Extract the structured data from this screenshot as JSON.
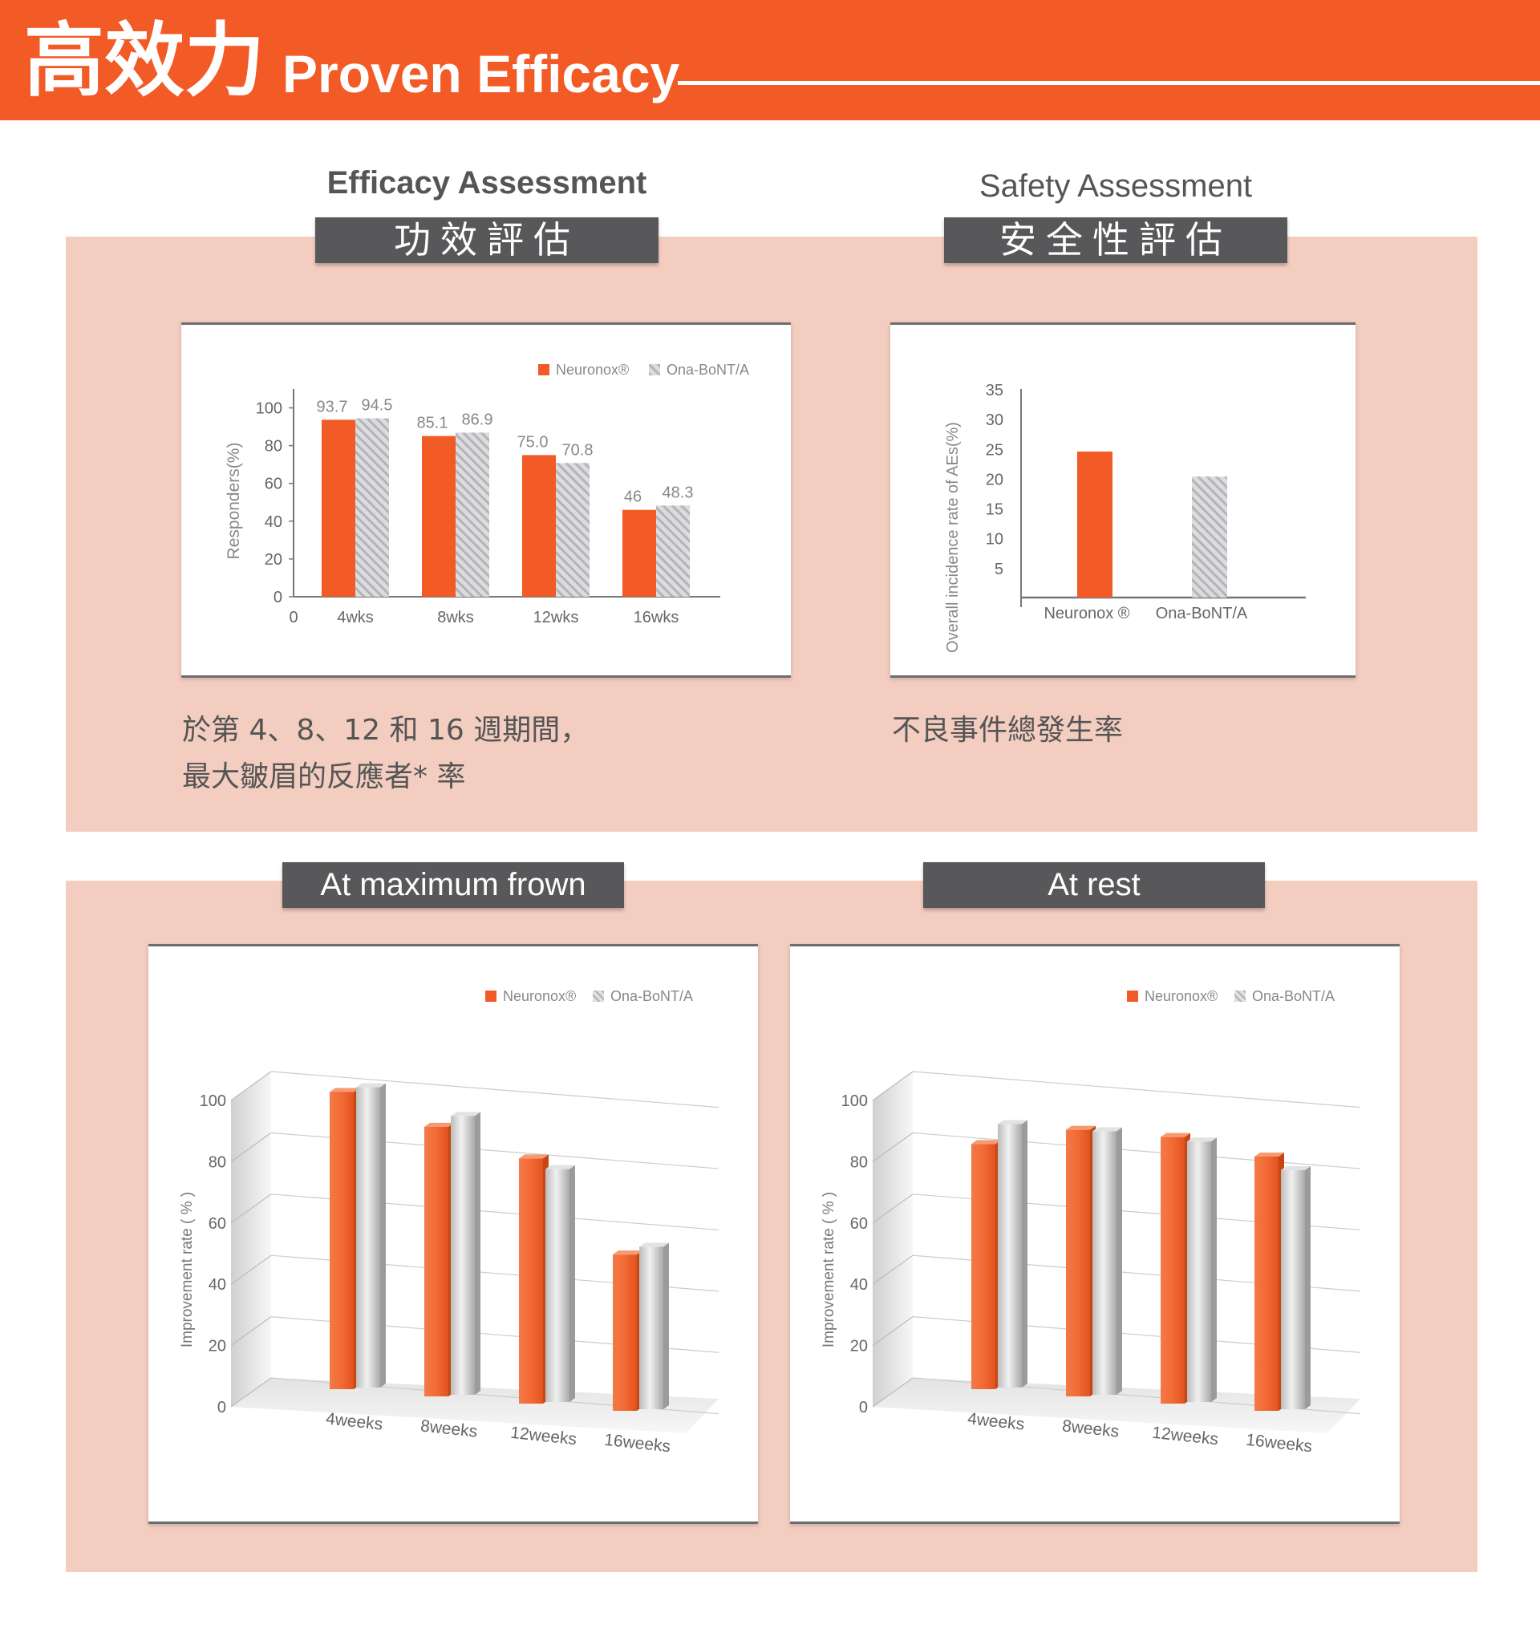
{
  "header": {
    "title_zh": "高效力",
    "title_en": "Proven Efficacy"
  },
  "top_left": {
    "label_en": "Efficacy Assessment",
    "label_zh": "功效評估",
    "caption_line1": "於第 4、8、12 和 16 週期間，",
    "caption_line2": "最大皺眉的反應者* 率"
  },
  "top_right": {
    "label_en": "Safety Assessment",
    "label_zh": "安全性評估",
    "caption_line1": "不良事件總發生率"
  },
  "bottom_left": {
    "label": "At maximum frown"
  },
  "bottom_right": {
    "label": "At rest"
  },
  "colors": {
    "neuronox": "#f25a26",
    "ona": "#c8c8cc",
    "header": "#f25a26",
    "band": "#f4cdc1",
    "title_bar": "#58585a"
  },
  "chart_data": [
    {
      "type": "bar",
      "categories": [
        "4wks",
        "8wks",
        "12wks",
        "16wks"
      ],
      "series": [
        {
          "name": "Neuronox®",
          "values": [
            93.7,
            85.1,
            75.0,
            46
          ]
        },
        {
          "name": "Ona-BoNT/A",
          "values": [
            94.5,
            86.9,
            70.8,
            48.3
          ]
        }
      ],
      "value_labels": [
        [
          "93.7",
          "85.1",
          "75.0",
          "46"
        ],
        [
          "94.5",
          "86.9",
          "70.8",
          "48.3"
        ]
      ],
      "x_origin_label": "0",
      "ylabel": "Responders(%)",
      "yticks": [
        0,
        20,
        40,
        60,
        80,
        100
      ],
      "ylim": [
        0,
        110
      ],
      "legend_position": "top-right"
    },
    {
      "type": "bar",
      "categories": [
        "Neuronox ®",
        "Ona-BoNT/A"
      ],
      "values": [
        24.5,
        20.3
      ],
      "ylabel": "Overall incidence rate of AEs(%)",
      "yticks": [
        5,
        10,
        15,
        20,
        25,
        30,
        35
      ],
      "ylim": [
        0,
        35
      ]
    },
    {
      "type": "bar",
      "categories": [
        "4weeks",
        "8weeks",
        "12weeks",
        "16weeks"
      ],
      "series": [
        {
          "name": "Neuronox®",
          "values": [
            97,
            88,
            80,
            51
          ]
        },
        {
          "name": "Ona-BoNT/A",
          "values": [
            98,
            91,
            76,
            53
          ]
        }
      ],
      "ylabel": "Improvement rate ( % )",
      "yticks": [
        0,
        20,
        40,
        60,
        80,
        100
      ],
      "ylim": [
        0,
        100
      ],
      "legend_position": "top-right"
    },
    {
      "type": "bar",
      "categories": [
        "4weeks",
        "8weeks",
        "12weeks",
        "16weeks"
      ],
      "series": [
        {
          "name": "Neuronox®",
          "values": [
            80,
            87,
            87,
            83
          ]
        },
        {
          "name": "Ona-BoNT/A",
          "values": [
            86,
            86,
            85,
            78
          ]
        }
      ],
      "ylabel": "Improvement rate ( % )",
      "yticks": [
        0,
        20,
        40,
        60,
        80,
        100
      ],
      "ylim": [
        0,
        100
      ],
      "legend_position": "top-right"
    }
  ]
}
